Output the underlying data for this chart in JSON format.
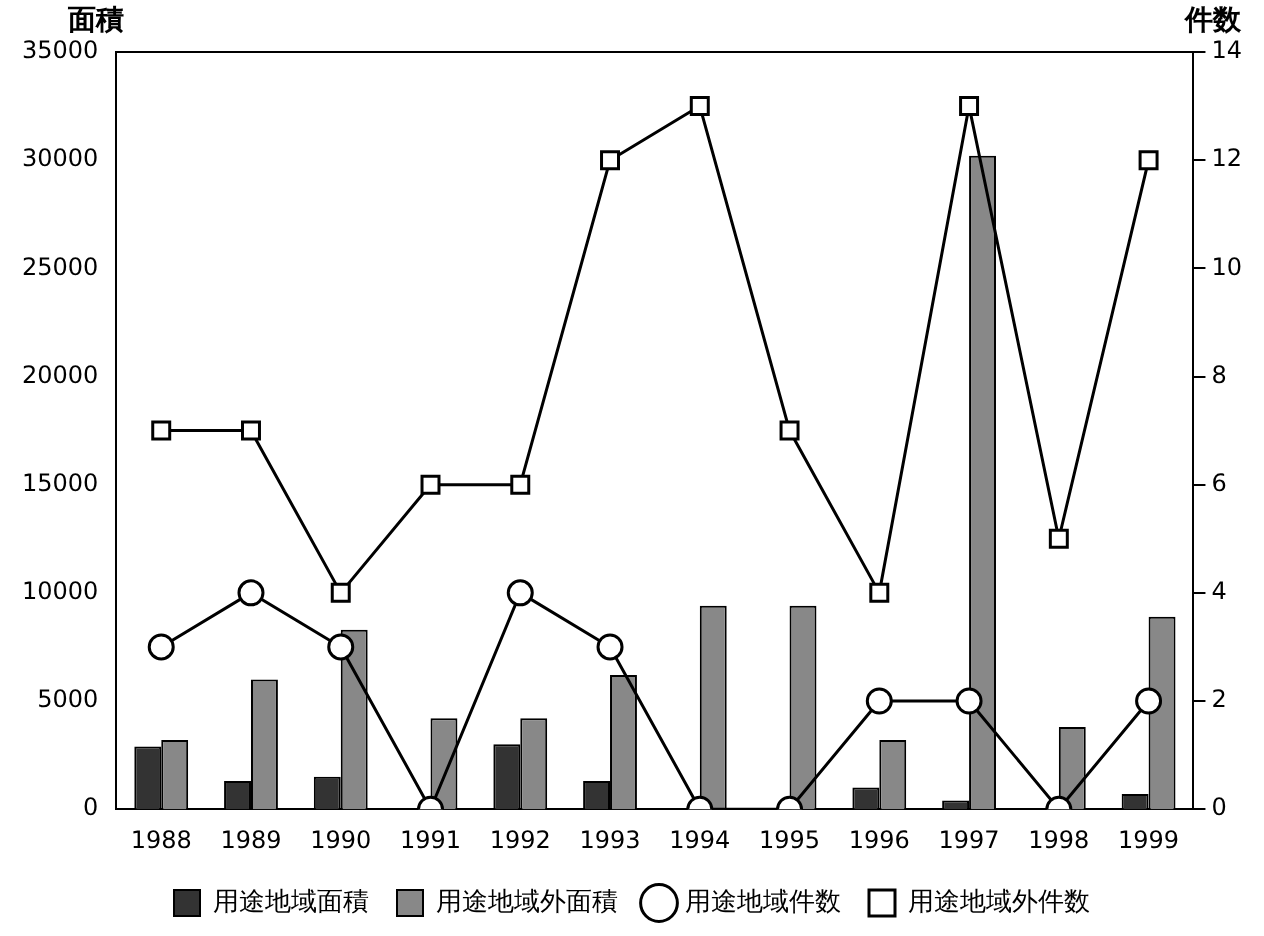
{
  "chart_data": {
    "type": "bar",
    "ylabel": "面積",
    "y2label": "件数",
    "categories": [
      "1988",
      "1989",
      "1990",
      "1991",
      "1992",
      "1993",
      "1994",
      "1995",
      "1996",
      "1997",
      "1998",
      "1999"
    ],
    "series": [
      {
        "name": "用途地域面積",
        "color": "#333333",
        "values": [
          2900,
          1300,
          1500,
          0,
          3000,
          1300,
          0,
          0,
          1000,
          400,
          0,
          700
        ]
      },
      {
        "name": "用途地域外面積",
        "color": "#888888",
        "values": [
          3200,
          6000,
          8300,
          4200,
          4200,
          6200,
          9400,
          9400,
          3200,
          30200,
          3800,
          8900
        ]
      },
      {
        "name": "用途地域件数",
        "type": "line",
        "axis": "y2",
        "marker": "circle",
        "color": "#000000",
        "values": [
          3,
          4,
          3,
          0,
          4,
          3,
          0,
          0,
          2,
          2,
          0,
          2
        ]
      },
      {
        "name": "用途地域外件数",
        "type": "line",
        "axis": "y2",
        "marker": "square",
        "color": "#000000",
        "values": [
          7,
          7,
          4,
          6,
          6,
          12,
          13,
          7,
          4,
          13,
          5,
          12
        ]
      }
    ],
    "ylim": [
      0,
      35000
    ],
    "yticks": [
      0,
      5000,
      10000,
      15000,
      20000,
      25000,
      30000,
      35000
    ],
    "y2lim": [
      0,
      14
    ],
    "y2ticks": [
      0,
      2,
      4,
      6,
      8,
      10,
      12,
      14
    ],
    "grid": false,
    "legend": "bottom"
  }
}
